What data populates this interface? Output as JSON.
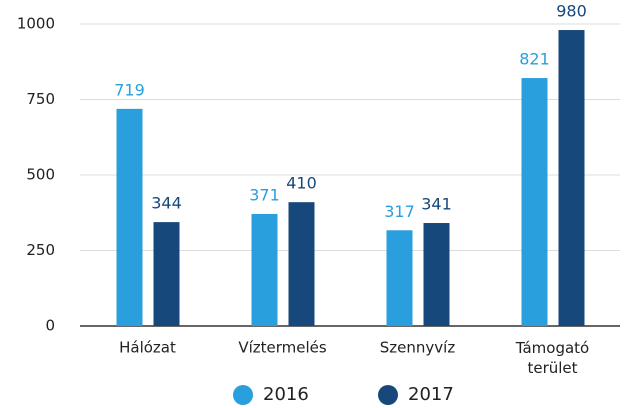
{
  "chart_data": {
    "type": "bar",
    "categories": [
      "Hálózat",
      "Víztermelés",
      "Szennyvíz",
      "Támogató terület"
    ],
    "series": [
      {
        "name": "2016",
        "color": "#299fdd",
        "values": [
          719,
          371,
          317,
          821
        ]
      },
      {
        "name": "2017",
        "color": "#17487b",
        "values": [
          344,
          410,
          341,
          980
        ]
      }
    ],
    "ylim": [
      0,
      1000
    ],
    "yticks": [
      0,
      250,
      500,
      750,
      1000
    ],
    "grid": true,
    "legend": "bottom"
  }
}
